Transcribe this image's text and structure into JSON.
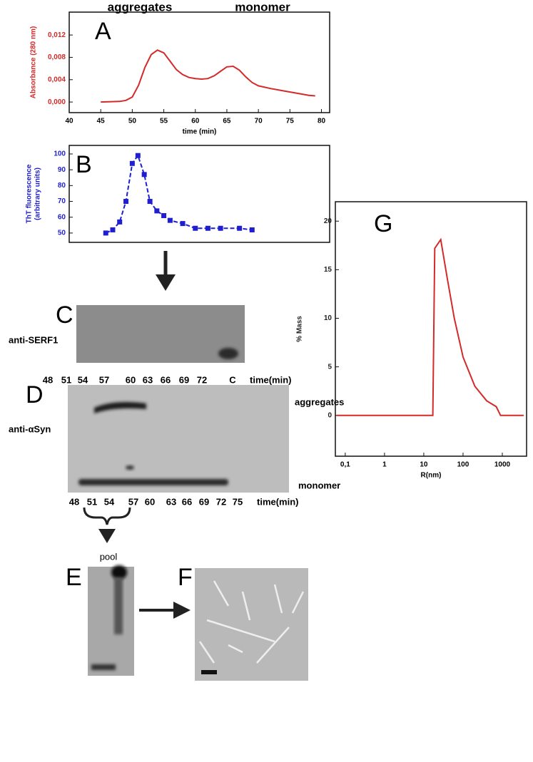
{
  "figure": {
    "header": [
      "aggregates",
      "monomer"
    ],
    "panels": [
      "A",
      "B",
      "C",
      "D",
      "E",
      "F",
      "G"
    ],
    "c_gel": {
      "antibody": "anti-SERF1",
      "lanes": [
        "48",
        "51",
        "54",
        "57",
        "60",
        "63",
        "66",
        "69",
        "72",
        "C"
      ],
      "axis": "time(min)"
    },
    "d_gel": {
      "antibody": "anti-αSyn",
      "top": "aggregates",
      "bottom": "monomer",
      "lanes": [
        "48",
        "51",
        "54",
        "57",
        "60",
        "63",
        "66",
        "69",
        "72",
        "75"
      ],
      "axis": "time(min)"
    },
    "pool": "pool"
  },
  "chart_data": [
    {
      "type": "line",
      "color": "#d42a2a",
      "ylabel": [
        "Absorbance (280 nm)"
      ],
      "xlabel": "time (min)",
      "x": [
        45,
        48,
        49,
        50,
        51,
        52,
        53,
        54,
        55,
        56,
        57,
        58,
        59,
        60,
        61,
        62,
        63,
        64,
        65,
        66,
        67,
        68,
        69,
        70,
        72,
        74,
        76,
        78,
        79
      ],
      "values": [
        0,
        0.0001,
        0.0003,
        0.0009,
        0.003,
        0.0062,
        0.0085,
        0.0093,
        0.0088,
        0.0073,
        0.0058,
        0.0049,
        0.0044,
        0.0042,
        0.0041,
        0.0042,
        0.0047,
        0.0055,
        0.0063,
        0.0064,
        0.0057,
        0.0045,
        0.0035,
        0.0029,
        0.0024,
        0.002,
        0.0016,
        0.0012,
        0.0011
      ],
      "xlim": [
        40,
        81.3
      ],
      "xticks": [
        40,
        45,
        50,
        55,
        60,
        65,
        70,
        75,
        80
      ],
      "ylim": [
        -0.0019,
        0.0161
      ],
      "yticks": [
        {
          "value": 0,
          "label": "0,000"
        },
        {
          "value": 0.004,
          "label": "0,004"
        },
        {
          "value": 0.008,
          "label": "0,008"
        },
        {
          "value": 0.012,
          "label": "0,012"
        }
      ]
    },
    {
      "type": "line",
      "marker": "square",
      "dashed": true,
      "color": "#1f1fd0",
      "ylabel": [
        "ThT fluorescence",
        "(arbitrary units)"
      ],
      "x": [
        45.8,
        46.9,
        48,
        49,
        50,
        50.9,
        51.9,
        52.8,
        53.9,
        55,
        56,
        58,
        60,
        62,
        64,
        67,
        69
      ],
      "values": [
        50,
        52,
        57,
        70,
        94,
        99,
        87,
        70,
        64,
        61,
        58,
        56,
        53,
        53,
        53,
        53,
        52
      ],
      "xlim": [
        40,
        81.3
      ],
      "ylim": [
        44.1,
        105.4
      ],
      "yticks": [
        50,
        60,
        70,
        80,
        90,
        100
      ]
    },
    {
      "type": "line",
      "color": "#d42a2a",
      "xscale": "log",
      "ylabel": [
        "% Mass"
      ],
      "xlabel": "R(nm)",
      "x": [
        0.06,
        17,
        19,
        27,
        40,
        60,
        100,
        200,
        400,
        700,
        900,
        3500
      ],
      "values": [
        0,
        0,
        17.2,
        18.1,
        14,
        10,
        6,
        3,
        1.5,
        0.9,
        0,
        0
      ],
      "xlim": [
        0.056,
        4150
      ],
      "xticks": [
        {
          "value": 0.1,
          "label": "0,1"
        },
        1,
        10,
        100,
        1000
      ],
      "ylim": [
        -4.2,
        22
      ],
      "yticks": [
        0,
        5,
        10,
        15,
        20
      ]
    }
  ]
}
